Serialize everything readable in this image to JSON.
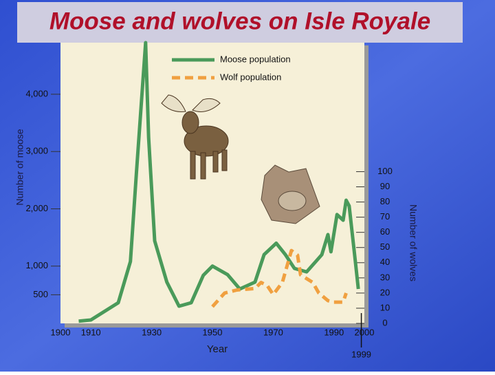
{
  "chart_data": {
    "type": "line",
    "title": "Moose and wolves on Isle Royale",
    "x_label": "Year",
    "y_label": "Number of moose",
    "y2_label": "Number of wolves",
    "xlim": [
      1900,
      2000
    ],
    "xticks": [
      1900,
      1910,
      1930,
      1950,
      1970,
      1990,
      2000
    ],
    "ylim": [
      0,
      4900
    ],
    "yticks": [
      500,
      {
        "value": 1000,
        "label": "1,000"
      },
      {
        "value": 2000,
        "label": "2,000"
      },
      {
        "value": 3000,
        "label": "3,000"
      },
      {
        "value": 4000,
        "label": "4,000"
      }
    ],
    "y2lim": [
      0,
      185
    ],
    "y2ticks": [
      0,
      10,
      20,
      30,
      40,
      50,
      60,
      70,
      80,
      90,
      100
    ],
    "annotations": [
      {
        "x": 1999,
        "text": "1999"
      }
    ],
    "series": [
      {
        "name": "Moose population",
        "color": "#4a9a5a",
        "style": "solid",
        "x": [
          1906,
          1910,
          1919,
          1923,
          1925,
          1928,
          1929,
          1931,
          1935,
          1939,
          1943,
          1947,
          1950,
          1955,
          1959,
          1964,
          1967,
          1971,
          1974,
          1977,
          1981,
          1984,
          1986,
          1988,
          1989,
          1991,
          1993,
          1994,
          1995,
          1997,
          1998
        ],
        "values": [
          40,
          60,
          360,
          1080,
          2640,
          4900,
          3240,
          1440,
          720,
          300,
          360,
          840,
          1000,
          850,
          600,
          720,
          1200,
          1400,
          1200,
          960,
          900,
          1080,
          1200,
          1550,
          1250,
          1900,
          1800,
          2150,
          2050,
          1100,
          600
        ]
      },
      {
        "name": "Wolf population",
        "color": "#f0a040",
        "style": "dashed",
        "axis": "y2",
        "x": [
          1950,
          1954,
          1958,
          1964,
          1966,
          1968,
          1970,
          1973,
          1976,
          1978,
          1979,
          1983,
          1985,
          1988,
          1990,
          1993,
          1994
        ],
        "values": [
          11,
          20,
          22,
          23,
          27,
          25,
          19,
          27,
          48,
          45,
          32,
          27,
          20,
          15,
          14,
          14,
          20
        ]
      }
    ]
  }
}
